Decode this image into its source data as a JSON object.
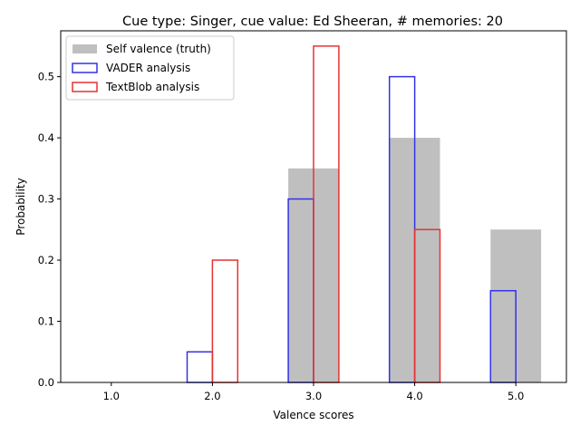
{
  "chart_data": {
    "type": "bar",
    "title": "Cue type: Singer, cue value: Ed Sheeran, # memories: 20",
    "xlabel": "Valence scores",
    "ylabel": "Probability",
    "categories": [
      "1.0",
      "2.0",
      "3.0",
      "4.0",
      "5.0"
    ],
    "x": [
      1.0,
      2.0,
      3.0,
      4.0,
      5.0
    ],
    "xlim": [
      0.5,
      5.5
    ],
    "ylim": [
      0,
      0.575
    ],
    "yticks": [
      "0.0",
      "0.1",
      "0.2",
      "0.3",
      "0.4",
      "0.5"
    ],
    "legend_position": "top-left",
    "grid": false,
    "series": [
      {
        "name": "Self valence (truth)",
        "style": "filled",
        "color": "#bfbfbf",
        "offset": 0.0,
        "values": [
          0.0,
          0.0,
          0.35,
          0.4,
          0.25
        ]
      },
      {
        "name": "VADER analysis",
        "style": "outline",
        "color": "#3333e6",
        "offset": -0.125,
        "values": [
          0.0,
          0.05,
          0.3,
          0.5,
          0.15
        ]
      },
      {
        "name": "TextBlob analysis",
        "style": "outline",
        "color": "#e63333",
        "offset": 0.125,
        "values": [
          0.0,
          0.2,
          0.55,
          0.25,
          0.0
        ]
      }
    ]
  }
}
